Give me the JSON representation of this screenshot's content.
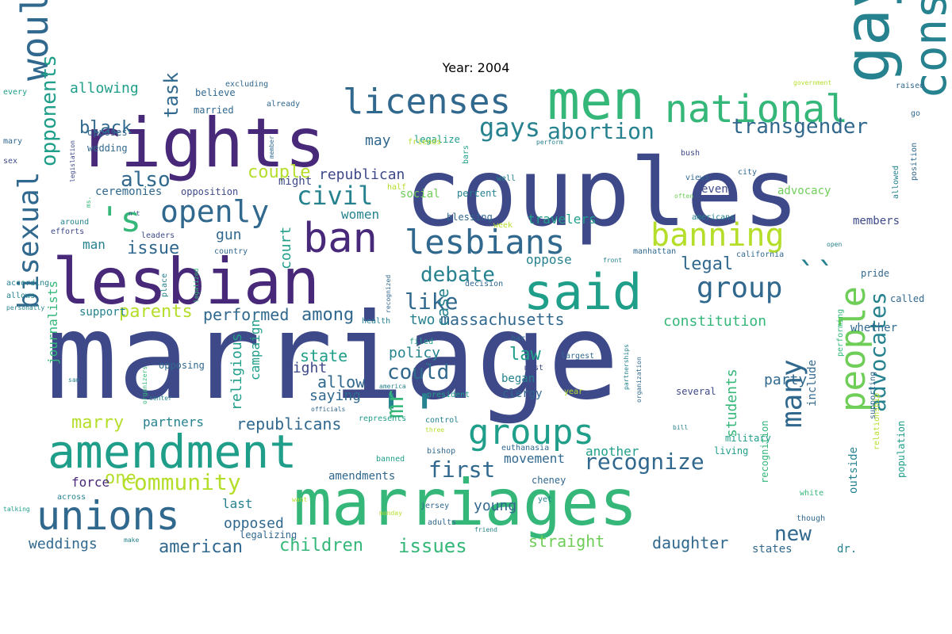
{
  "title": "Year: 2004",
  "palette": [
    "#440154",
    "#482878",
    "#3e4989",
    "#31688e",
    "#26828e",
    "#1f9e89",
    "#35b779",
    "#6ece58",
    "#b5de2b",
    "#fde725"
  ],
  "words": [
    {
      "text": "marriage",
      "c": 2
    },
    {
      "text": "couples",
      "c": 2
    },
    {
      "text": "marriages",
      "c": 6
    },
    {
      "text": "rights",
      "c": 1
    },
    {
      "text": "lesbian",
      "c": 1
    },
    {
      "text": "gay",
      "c": 4
    },
    {
      "text": "men",
      "c": 6
    },
    {
      "text": "amendment",
      "c": 5
    },
    {
      "text": "said",
      "c": 5
    },
    {
      "text": "constitutional",
      "c": 4
    },
    {
      "text": "national",
      "c": 6
    },
    {
      "text": "licenses",
      "c": 3
    },
    {
      "text": "lesbians",
      "c": 3
    },
    {
      "text": "unions",
      "c": 3
    },
    {
      "text": "ban",
      "c": 1
    },
    {
      "text": "would",
      "c": 3
    },
    {
      "text": "groups",
      "c": 5
    },
    {
      "text": "openly",
      "c": 3
    },
    {
      "text": "bisexual",
      "c": 3
    },
    {
      "text": "people",
      "c": 7
    },
    {
      "text": "banning",
      "c": 8
    },
    {
      "text": "group",
      "c": 3
    },
    {
      "text": "many",
      "c": 3
    },
    {
      "text": "'s",
      "c": 6
    },
    {
      "text": "``",
      "c": 4
    },
    {
      "text": "''",
      "c": 4
    },
    {
      "text": "gays",
      "c": 4
    },
    {
      "text": "abortion",
      "c": 4
    },
    {
      "text": "transgender",
      "c": 3
    },
    {
      "text": "civil",
      "c": 4
    },
    {
      "text": "also",
      "c": 3
    },
    {
      "text": "opponents",
      "c": 5
    },
    {
      "text": "community",
      "c": 8
    },
    {
      "text": "recognize",
      "c": 3
    },
    {
      "text": "advocates",
      "c": 4
    },
    {
      "text": "first",
      "c": 3
    },
    {
      "text": "like",
      "c": 3
    },
    {
      "text": "debate",
      "c": 4
    },
    {
      "text": "mr",
      "c": 6
    },
    {
      "text": "could",
      "c": 3
    },
    {
      "text": "parents",
      "c": 8
    },
    {
      "text": "massachusetts",
      "c": 3
    },
    {
      "text": "new",
      "c": 3
    },
    {
      "text": "issues",
      "c": 6
    },
    {
      "text": "children",
      "c": 6
    },
    {
      "text": "weddings",
      "c": 3
    },
    {
      "text": "american",
      "c": 3
    },
    {
      "text": "task",
      "c": 3
    },
    {
      "text": "black",
      "c": 3
    },
    {
      "text": "couple",
      "c": 8
    },
    {
      "text": "republican",
      "c": 2
    },
    {
      "text": "among",
      "c": 3
    },
    {
      "text": "marry",
      "c": 8
    },
    {
      "text": "issue",
      "c": 3
    },
    {
      "text": "performed",
      "c": 3
    },
    {
      "text": "law",
      "c": 5
    },
    {
      "text": "legal",
      "c": 3
    },
    {
      "text": "daughter",
      "c": 3
    },
    {
      "text": "straight",
      "c": 7
    },
    {
      "text": "constitution",
      "c": 6
    },
    {
      "text": "one",
      "c": 8
    },
    {
      "text": "allowing",
      "c": 5
    },
    {
      "text": "state",
      "c": 5
    },
    {
      "text": "allow",
      "c": 3
    },
    {
      "text": "case",
      "c": 4
    },
    {
      "text": "right",
      "c": 2
    },
    {
      "text": "saying",
      "c": 3
    },
    {
      "text": "republicans",
      "c": 3
    },
    {
      "text": "court",
      "c": 5
    },
    {
      "text": "opposed",
      "c": 3
    },
    {
      "text": "young",
      "c": 3
    },
    {
      "text": "movement",
      "c": 3
    },
    {
      "text": "another",
      "c": 5
    },
    {
      "text": "may",
      "c": 3
    },
    {
      "text": "two",
      "c": 4
    },
    {
      "text": "policy",
      "c": 4
    },
    {
      "text": "religious",
      "c": 5
    },
    {
      "text": "campaign",
      "c": 5
    },
    {
      "text": "journalists",
      "c": 6
    },
    {
      "text": "students",
      "c": 6
    },
    {
      "text": "party",
      "c": 3
    },
    {
      "text": "last",
      "c": 4
    },
    {
      "text": "force",
      "c": 1
    },
    {
      "text": "partners",
      "c": 4
    },
    {
      "text": "travelers",
      "c": 5
    },
    {
      "text": "women",
      "c": 4
    },
    {
      "text": "man",
      "c": 4
    },
    {
      "text": "gun",
      "c": 3
    },
    {
      "text": "oppose",
      "c": 4
    },
    {
      "text": "amendments",
      "c": 3
    },
    {
      "text": "states",
      "c": 3
    },
    {
      "text": "dr.",
      "c": 4
    },
    {
      "text": "outside",
      "c": 4
    },
    {
      "text": "members",
      "c": 2
    },
    {
      "text": "include",
      "c": 3
    },
    {
      "text": "support",
      "c": 4
    },
    {
      "text": "social",
      "c": 7
    },
    {
      "text": "ceremonies",
      "c": 3
    },
    {
      "text": "opposition",
      "c": 2
    },
    {
      "text": "might",
      "c": 2
    },
    {
      "text": "legalizing",
      "c": 3
    },
    {
      "text": "even",
      "c": 2
    },
    {
      "text": "advocacy",
      "c": 7
    },
    {
      "text": "recognition",
      "c": 6
    },
    {
      "text": "whether",
      "c": 3
    },
    {
      "text": "several",
      "c": 2
    },
    {
      "text": "began",
      "c": 4
    },
    {
      "text": "clergy",
      "c": 3
    },
    {
      "text": "pride",
      "c": 3
    },
    {
      "text": "called",
      "c": 3
    },
    {
      "text": "population",
      "c": 5
    },
    {
      "text": "military",
      "c": 5
    },
    {
      "text": "living",
      "c": 5
    },
    {
      "text": "cheney",
      "c": 3
    },
    {
      "text": "opposing",
      "c": 3
    },
    {
      "text": "believe",
      "c": 3
    },
    {
      "text": "married",
      "c": 3
    },
    {
      "text": "opposes",
      "c": 3
    },
    {
      "text": "wedding",
      "c": 3
    },
    {
      "text": "blessing",
      "c": 3
    },
    {
      "text": "percent",
      "c": 4
    },
    {
      "text": "legalize",
      "c": 5
    },
    {
      "text": "every",
      "c": 5
    },
    {
      "text": "raised",
      "c": 3
    },
    {
      "text": "government",
      "c": 8
    },
    {
      "text": "excluding",
      "c": 3
    },
    {
      "text": "already",
      "c": 3
    },
    {
      "text": "leaders",
      "c": 2
    },
    {
      "text": "efforts",
      "c": 2
    },
    {
      "text": "around",
      "c": 4
    },
    {
      "text": "according",
      "c": 4
    },
    {
      "text": "allows",
      "c": 4
    },
    {
      "text": "personally",
      "c": 4
    },
    {
      "text": "health",
      "c": 4
    },
    {
      "text": "filed",
      "c": 5
    },
    {
      "text": "decision",
      "c": 3
    },
    {
      "text": "california",
      "c": 3
    },
    {
      "text": "manhattan",
      "c": 3
    },
    {
      "text": "country",
      "c": 3
    },
    {
      "text": "front",
      "c": 4
    },
    {
      "text": "views",
      "c": 3
    },
    {
      "text": "well",
      "c": 4
    },
    {
      "text": "bars",
      "c": 5
    },
    {
      "text": "friends",
      "c": 8
    },
    {
      "text": "half",
      "c": 8
    },
    {
      "text": "week",
      "c": 8
    },
    {
      "text": "perform",
      "c": 4
    },
    {
      "text": "bush",
      "c": 2
    },
    {
      "text": "city",
      "c": 3
    },
    {
      "text": "often",
      "c": 7
    },
    {
      "text": "americans",
      "c": 4
    },
    {
      "text": "allowed",
      "c": 4
    },
    {
      "text": "position",
      "c": 3
    },
    {
      "text": "go",
      "c": 3
    },
    {
      "text": "mary",
      "c": 3
    },
    {
      "text": "sex",
      "c": 2
    },
    {
      "text": "legislation",
      "c": 2
    },
    {
      "text": "member",
      "c": 3
    },
    {
      "text": "place",
      "c": 4
    },
    {
      "text": "legalized",
      "c": 6
    },
    {
      "text": "recognized",
      "c": 3
    },
    {
      "text": "bar",
      "c": 3
    },
    {
      "text": "must",
      "c": 2
    },
    {
      "text": "largest",
      "c": 3
    },
    {
      "text": "partnerships",
      "c": 4
    },
    {
      "text": "organization",
      "c": 3
    },
    {
      "text": "supporting",
      "c": 3
    },
    {
      "text": "performing",
      "c": 6
    },
    {
      "text": "president",
      "c": 5
    },
    {
      "text": "year",
      "c": 8
    },
    {
      "text": "represents",
      "c": 5
    },
    {
      "text": "officials",
      "c": 3
    },
    {
      "text": "control",
      "c": 4
    },
    {
      "text": "three",
      "c": 8
    },
    {
      "text": "bishop",
      "c": 3
    },
    {
      "text": "euthanasia",
      "c": 3
    },
    {
      "text": "banned",
      "c": 5
    },
    {
      "text": "jersey",
      "c": 3
    },
    {
      "text": "adults",
      "c": 3
    },
    {
      "text": "friend",
      "c": 4
    },
    {
      "text": "white",
      "c": 6
    },
    {
      "text": "though",
      "c": 3
    },
    {
      "text": "yet",
      "c": 4
    },
    {
      "text": "bill",
      "c": 4
    },
    {
      "text": "across",
      "c": 4
    },
    {
      "text": "talking",
      "c": 5
    },
    {
      "text": "want",
      "c": 8
    },
    {
      "text": "monday",
      "c": 8
    },
    {
      "text": "make",
      "c": 4
    },
    {
      "text": "america",
      "c": 4
    },
    {
      "text": "san",
      "c": 4
    },
    {
      "text": "center",
      "c": 4
    },
    {
      "text": "organizers",
      "c": 6
    },
    {
      "text": "open",
      "c": 4
    },
    {
      "text": "relationship",
      "c": 8
    },
    {
      "text": "n't",
      "c": 2
    },
    {
      "text": "ms.",
      "c": 6
    }
  ]
}
